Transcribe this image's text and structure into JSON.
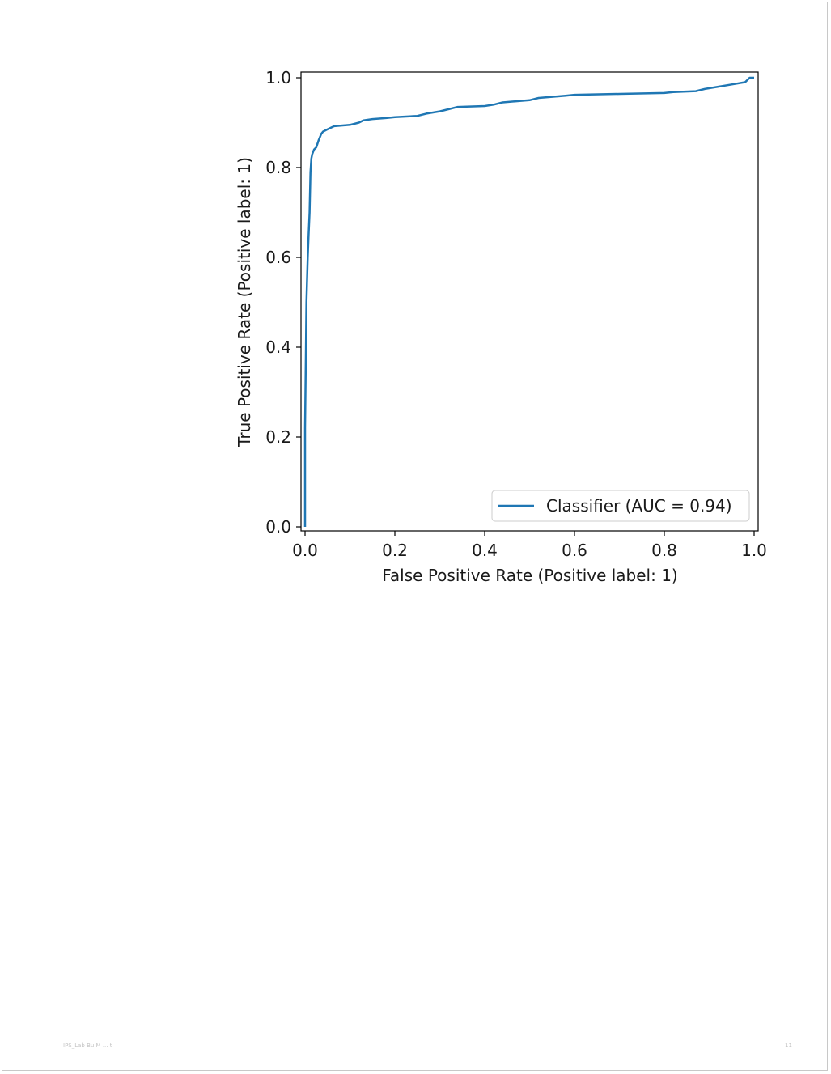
{
  "chart_data": {
    "type": "line",
    "xlabel": "False Positive Rate (Positive label: 1)",
    "ylabel": "True Positive Rate (Positive label: 1)",
    "xlim": [
      0.0,
      1.0
    ],
    "ylim": [
      0.0,
      1.0
    ],
    "x_ticks": [
      "0.0",
      "0.2",
      "0.4",
      "0.6",
      "0.8",
      "1.0"
    ],
    "y_ticks": [
      "0.0",
      "0.2",
      "0.4",
      "0.6",
      "0.8",
      "1.0"
    ],
    "grid": false,
    "legend_position": "lower-right",
    "series": [
      {
        "name": "Classifier (AUC = 0.94)",
        "color": "#1f77b4",
        "x": [
          0.0,
          0.0,
          0.002,
          0.003,
          0.005,
          0.006,
          0.008,
          0.01,
          0.012,
          0.014,
          0.016,
          0.018,
          0.02,
          0.025,
          0.03,
          0.034,
          0.036,
          0.04,
          0.05,
          0.06,
          0.065,
          0.1,
          0.12,
          0.13,
          0.15,
          0.18,
          0.2,
          0.25,
          0.27,
          0.3,
          0.32,
          0.34,
          0.4,
          0.42,
          0.44,
          0.5,
          0.52,
          0.58,
          0.6,
          0.7,
          0.8,
          0.82,
          0.87,
          0.89,
          0.92,
          0.95,
          0.98,
          0.99,
          1.0
        ],
        "y": [
          0.0,
          0.22,
          0.4,
          0.5,
          0.57,
          0.6,
          0.65,
          0.7,
          0.79,
          0.82,
          0.83,
          0.835,
          0.84,
          0.845,
          0.86,
          0.87,
          0.875,
          0.88,
          0.885,
          0.89,
          0.892,
          0.895,
          0.9,
          0.905,
          0.908,
          0.91,
          0.912,
          0.915,
          0.92,
          0.925,
          0.93,
          0.935,
          0.937,
          0.94,
          0.945,
          0.95,
          0.955,
          0.96,
          0.962,
          0.964,
          0.966,
          0.968,
          0.97,
          0.975,
          0.98,
          0.985,
          0.99,
          1.0,
          1.0
        ]
      }
    ]
  },
  "footer": {
    "left": "IPS_Lab  Bu  M   ...  t",
    "right": "11"
  }
}
